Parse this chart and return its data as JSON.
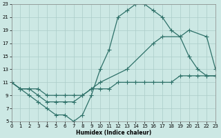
{
  "xlabel": "Humidex (Indice chaleur)",
  "xlim": [
    0,
    23
  ],
  "ylim": [
    5,
    23
  ],
  "xticks": [
    0,
    1,
    2,
    3,
    4,
    5,
    6,
    7,
    8,
    9,
    10,
    11,
    12,
    13,
    14,
    15,
    16,
    17,
    18,
    19,
    20,
    21,
    22,
    23
  ],
  "yticks": [
    5,
    7,
    9,
    11,
    13,
    15,
    17,
    19,
    21,
    23
  ],
  "bg_color": "#cce8e4",
  "grid_color": "#aaccc8",
  "line_color": "#2d7068",
  "line1_x": [
    0,
    1,
    2,
    3,
    4,
    5,
    6,
    7,
    8,
    9,
    10,
    11,
    12,
    13,
    14,
    15,
    16,
    17,
    18,
    19,
    20,
    21,
    22,
    23
  ],
  "line1_y": [
    11,
    10,
    9,
    8,
    7,
    6,
    6,
    5,
    6,
    9,
    13,
    16,
    21,
    22,
    23,
    23,
    22,
    21,
    19,
    18,
    15,
    13,
    12,
    12
  ],
  "line2_x": [
    0,
    1,
    2,
    3,
    4,
    5,
    6,
    7,
    8,
    9,
    10,
    13,
    16,
    17,
    19,
    20,
    22,
    23
  ],
  "line2_y": [
    11,
    10,
    10,
    9,
    8,
    8,
    8,
    8,
    9,
    10,
    11,
    13,
    17,
    18,
    18,
    19,
    18,
    13
  ],
  "line3_x": [
    0,
    1,
    2,
    3,
    4,
    5,
    6,
    7,
    8,
    9,
    10,
    11,
    12,
    13,
    14,
    15,
    16,
    17,
    18,
    19,
    20,
    21,
    22,
    23
  ],
  "line3_y": [
    11,
    10,
    10,
    10,
    9,
    9,
    9,
    9,
    9,
    10,
    10,
    10,
    11,
    11,
    11,
    11,
    11,
    11,
    11,
    12,
    12,
    12,
    12,
    12
  ]
}
